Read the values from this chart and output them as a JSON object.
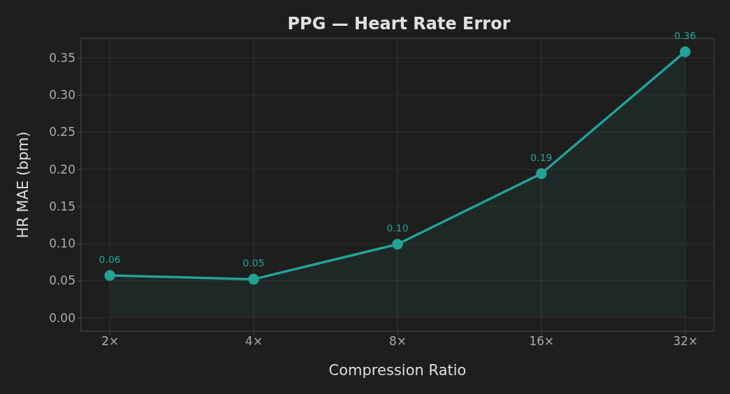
{
  "chart_data": {
    "type": "area",
    "title": "PPG — Heart Rate Error",
    "xlabel": "Compression Ratio",
    "ylabel": "HR MAE (bpm)",
    "categories": [
      "2×",
      "4×",
      "8×",
      "16×",
      "32×"
    ],
    "series": [
      {
        "color": "#22a395",
        "values": [
          0.057,
          0.052,
          0.099,
          0.194,
          0.358
        ],
        "value_labels": [
          "0.06",
          "0.05",
          "0.10",
          "0.19",
          "0.36"
        ]
      }
    ],
    "ylim": [
      -0.018,
      0.376
    ],
    "yticks": [
      {
        "value": 0,
        "label": "0.00"
      },
      {
        "value": 0.05,
        "label": "0.05"
      },
      {
        "value": 0.1,
        "label": "0.10"
      },
      {
        "value": 0.15,
        "label": "0.15"
      },
      {
        "value": 0.2,
        "label": "0.20"
      },
      {
        "value": 0.25,
        "label": "0.25"
      },
      {
        "value": 0.3,
        "label": "0.30"
      },
      {
        "value": 0.35,
        "label": "0.35"
      }
    ],
    "grid": true,
    "marker": "circle",
    "line_style": "solid"
  }
}
